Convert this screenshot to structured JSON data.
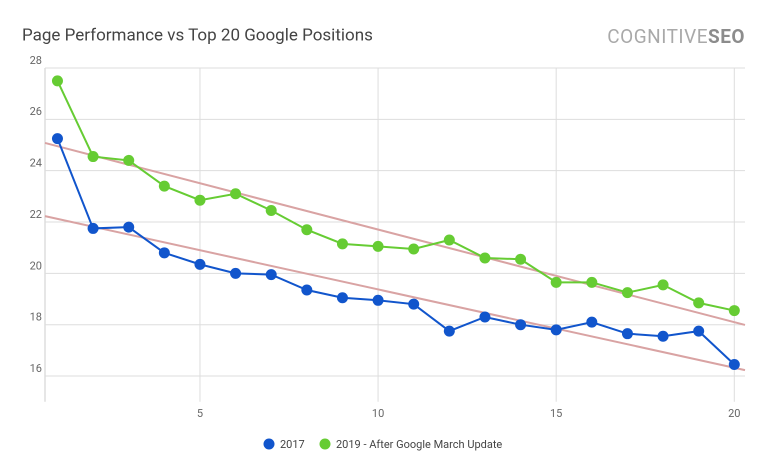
{
  "chart_data": {
    "type": "line",
    "title": "Page Performance vs Top 20 Google Positions",
    "logo": {
      "text": "COGNITIVE",
      "bold": "SEO"
    },
    "x": [
      1,
      2,
      3,
      4,
      5,
      6,
      7,
      8,
      9,
      10,
      11,
      12,
      13,
      14,
      15,
      16,
      17,
      18,
      19,
      20
    ],
    "series": [
      {
        "name": "2017",
        "color": "#1155cc",
        "values": [
          25.25,
          21.75,
          21.8,
          20.8,
          20.35,
          20.0,
          19.95,
          19.35,
          19.05,
          18.95,
          18.8,
          17.75,
          18.3,
          18.0,
          17.8,
          18.1,
          17.65,
          17.55,
          17.75,
          16.45
        ]
      },
      {
        "name": "2019 - After Google March Update",
        "color": "#66cc33",
        "values": [
          27.5,
          24.55,
          24.4,
          23.4,
          22.85,
          23.1,
          22.45,
          21.7,
          21.15,
          21.05,
          20.95,
          21.3,
          20.6,
          20.55,
          19.65,
          19.65,
          19.25,
          19.55,
          18.85,
          18.55
        ]
      }
    ],
    "trendlines": [
      {
        "color": "#d9a3a3",
        "x": [
          0.65,
          20.3
        ],
        "values": [
          22.23,
          16.23
        ]
      },
      {
        "color": "#d9a3a3",
        "x": [
          0.65,
          20.3
        ],
        "values": [
          25.08,
          17.99
        ]
      }
    ],
    "xlim": [
      0.65,
      20.3
    ],
    "xticks": [
      5,
      10,
      15,
      20
    ],
    "ylim": [
      15,
      28
    ],
    "yticks": [
      16,
      18,
      20,
      22,
      24,
      26,
      28
    ],
    "grid": true
  }
}
